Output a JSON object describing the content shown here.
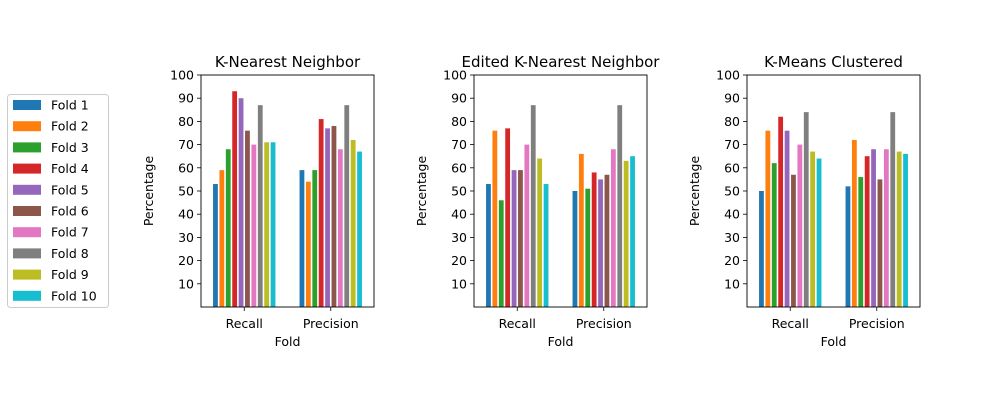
{
  "legend": {
    "entries": [
      {
        "label": "Fold 1",
        "color": "#1f77b4"
      },
      {
        "label": "Fold 2",
        "color": "#ff7f0e"
      },
      {
        "label": "Fold 3",
        "color": "#2ca02c"
      },
      {
        "label": "Fold 4",
        "color": "#d62728"
      },
      {
        "label": "Fold 5",
        "color": "#9467bd"
      },
      {
        "label": "Fold 6",
        "color": "#8c564b"
      },
      {
        "label": "Fold 7",
        "color": "#e377c2"
      },
      {
        "label": "Fold 8",
        "color": "#7f7f7f"
      },
      {
        "label": "Fold 9",
        "color": "#bcbd22"
      },
      {
        "label": "Fold 10",
        "color": "#17becf"
      }
    ],
    "placement": "left"
  },
  "chart_data": [
    {
      "type": "bar",
      "title": "K-Nearest Neighbor",
      "xlabel": "Fold",
      "ylabel": "Percentage",
      "ylim": [
        0,
        100
      ],
      "yticks": [
        10,
        20,
        30,
        40,
        50,
        60,
        70,
        80,
        90,
        100
      ],
      "categories": [
        "Recall",
        "Precision"
      ],
      "series": [
        {
          "name": "Fold 1",
          "values": [
            53,
            59
          ]
        },
        {
          "name": "Fold 2",
          "values": [
            59,
            54
          ]
        },
        {
          "name": "Fold 3",
          "values": [
            68,
            59
          ]
        },
        {
          "name": "Fold 4",
          "values": [
            93,
            81
          ]
        },
        {
          "name": "Fold 5",
          "values": [
            90,
            77
          ]
        },
        {
          "name": "Fold 6",
          "values": [
            76,
            78
          ]
        },
        {
          "name": "Fold 7",
          "values": [
            70,
            68
          ]
        },
        {
          "name": "Fold 8",
          "values": [
            87,
            87
          ]
        },
        {
          "name": "Fold 9",
          "values": [
            71,
            72
          ]
        },
        {
          "name": "Fold 10",
          "values": [
            71,
            67
          ]
        }
      ]
    },
    {
      "type": "bar",
      "title": "Edited K-Nearest Neighbor",
      "xlabel": "Fold",
      "ylabel": "Percentage",
      "ylim": [
        0,
        100
      ],
      "yticks": [
        10,
        20,
        30,
        40,
        50,
        60,
        70,
        80,
        90,
        100
      ],
      "categories": [
        "Recall",
        "Precision"
      ],
      "series": [
        {
          "name": "Fold 1",
          "values": [
            53,
            50
          ]
        },
        {
          "name": "Fold 2",
          "values": [
            76,
            66
          ]
        },
        {
          "name": "Fold 3",
          "values": [
            46,
            51
          ]
        },
        {
          "name": "Fold 4",
          "values": [
            77,
            58
          ]
        },
        {
          "name": "Fold 5",
          "values": [
            59,
            55
          ]
        },
        {
          "name": "Fold 6",
          "values": [
            59,
            57
          ]
        },
        {
          "name": "Fold 7",
          "values": [
            70,
            68
          ]
        },
        {
          "name": "Fold 8",
          "values": [
            87,
            87
          ]
        },
        {
          "name": "Fold 9",
          "values": [
            64,
            63
          ]
        },
        {
          "name": "Fold 10",
          "values": [
            53,
            65
          ]
        }
      ]
    },
    {
      "type": "bar",
      "title": "K-Means Clustered",
      "xlabel": "Fold",
      "ylabel": "Percentage",
      "ylim": [
        0,
        100
      ],
      "yticks": [
        10,
        20,
        30,
        40,
        50,
        60,
        70,
        80,
        90,
        100
      ],
      "categories": [
        "Recall",
        "Precision"
      ],
      "series": [
        {
          "name": "Fold 1",
          "values": [
            50,
            52
          ]
        },
        {
          "name": "Fold 2",
          "values": [
            76,
            72
          ]
        },
        {
          "name": "Fold 3",
          "values": [
            62,
            56
          ]
        },
        {
          "name": "Fold 4",
          "values": [
            82,
            65
          ]
        },
        {
          "name": "Fold 5",
          "values": [
            76,
            68
          ]
        },
        {
          "name": "Fold 6",
          "values": [
            57,
            55
          ]
        },
        {
          "name": "Fold 7",
          "values": [
            70,
            68
          ]
        },
        {
          "name": "Fold 8",
          "values": [
            84,
            84
          ]
        },
        {
          "name": "Fold 9",
          "values": [
            67,
            67
          ]
        },
        {
          "name": "Fold 10",
          "values": [
            64,
            66
          ]
        }
      ]
    }
  ]
}
